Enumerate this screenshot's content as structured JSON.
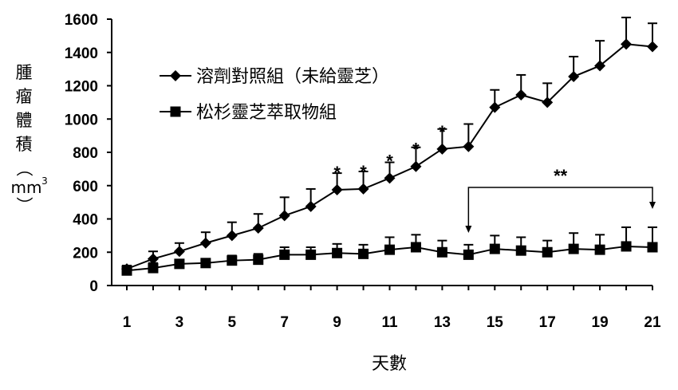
{
  "chart_data": {
    "type": "line",
    "title": "",
    "xlabel": "天數",
    "ylabel": "腫瘤體積（mm³）",
    "ylabel_chars": [
      "腫",
      "瘤",
      "體",
      "積",
      "（",
      "mm",
      "3",
      "）"
    ],
    "xlim": [
      1,
      21
    ],
    "ylim": [
      0,
      1600
    ],
    "x_ticks": [
      1,
      3,
      5,
      7,
      9,
      11,
      13,
      15,
      17,
      19,
      21
    ],
    "y_ticks": [
      0,
      200,
      400,
      600,
      800,
      1000,
      1200,
      1400,
      1600
    ],
    "grid": false,
    "legend_position": "top-left",
    "x": [
      1,
      2,
      3,
      4,
      5,
      6,
      7,
      8,
      9,
      10,
      11,
      12,
      13,
      14,
      15,
      16,
      17,
      18,
      19,
      20,
      21
    ],
    "series": [
      {
        "name": "溶劑對照組（未給靈芝）",
        "marker": "diamond",
        "color": "#000000",
        "values": [
          100,
          160,
          205,
          255,
          300,
          345,
          420,
          475,
          575,
          580,
          645,
          715,
          820,
          835,
          1070,
          1145,
          1100,
          1255,
          1320,
          1450,
          1435
        ],
        "error": [
          20,
          45,
          50,
          65,
          80,
          85,
          110,
          105,
          100,
          105,
          95,
          115,
          120,
          135,
          105,
          120,
          115,
          120,
          150,
          160,
          140
        ]
      },
      {
        "name": "松杉靈芝萃取物組",
        "marker": "square",
        "color": "#000000",
        "values": [
          90,
          105,
          130,
          135,
          150,
          155,
          185,
          185,
          195,
          190,
          215,
          230,
          200,
          185,
          220,
          210,
          200,
          220,
          215,
          235,
          230
        ],
        "error": [
          15,
          30,
          25,
          25,
          30,
          35,
          45,
          45,
          55,
          55,
          75,
          75,
          70,
          60,
          80,
          80,
          70,
          95,
          90,
          115,
          120
        ]
      }
    ],
    "annotations": [
      {
        "text": "*",
        "x": 9
      },
      {
        "text": "*",
        "x": 10
      },
      {
        "text": "*",
        "x": 11
      },
      {
        "text": "*",
        "x": 12
      },
      {
        "text": "*",
        "x": 13
      },
      {
        "text": "**",
        "x_from": 14,
        "x_to": 21
      }
    ]
  }
}
